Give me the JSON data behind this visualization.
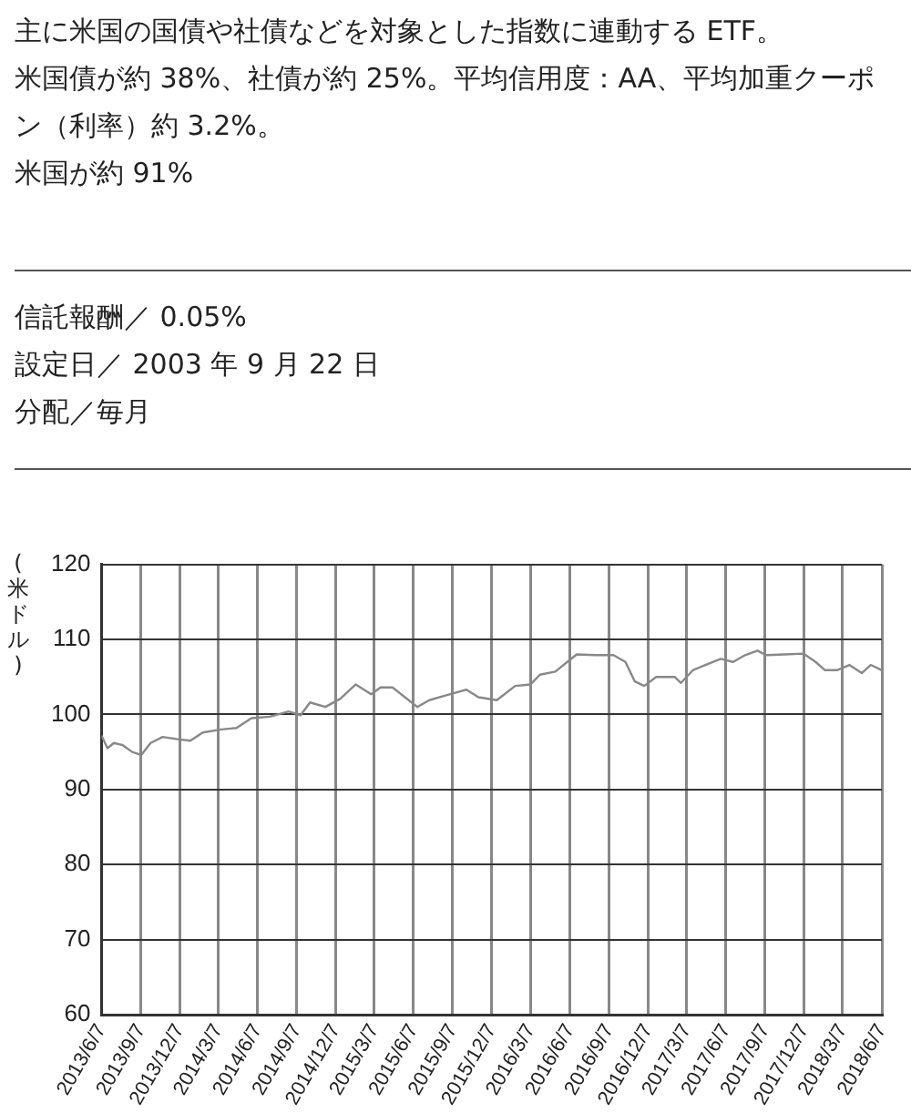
{
  "chart_data": {
    "type": "line",
    "ylabel": "(米ドル)",
    "annotations": [
      "主に米国の国債や社債などを対象とした指数に連動する ETF。",
      "米国債が約 38%、社債が約 25%。平均信用度：AA、平均加重クーポン（利率）約 3.2%。",
      "米国が約 91%",
      "信託報酬／ 0.05%",
      "設定日／ 2003 年 9 月 22 日",
      "分配／毎月"
    ],
    "x": [
      "2013-06-07",
      "2013-06-21",
      "2013-07-06",
      "2013-07-27",
      "2013-08-18",
      "2013-09-08",
      "2013-09-30",
      "2013-10-28",
      "2013-12-03",
      "2014-01-01",
      "2014-01-30",
      "2014-03-14",
      "2014-04-19",
      "2014-05-24",
      "2014-07-06",
      "2014-08-19",
      "2014-09-16",
      "2014-10-08",
      "2014-11-13",
      "2014-12-18",
      "2015-01-23",
      "2015-02-28",
      "2015-03-22",
      "2015-04-19",
      "2015-05-18",
      "2015-06-16",
      "2015-07-14",
      "2015-08-19",
      "2015-10-09",
      "2015-11-06",
      "2015-12-19",
      "2016-01-31",
      "2016-03-07",
      "2016-03-29",
      "2016-05-04",
      "2016-06-01",
      "2016-06-23",
      "2016-08-05",
      "2016-09-17",
      "2016-10-15",
      "2016-11-06",
      "2016-11-28",
      "2016-12-26",
      "2017-02-07",
      "2017-02-22",
      "2017-03-22",
      "2017-04-20",
      "2017-05-26",
      "2017-06-24",
      "2017-07-22",
      "2017-08-20",
      "2017-09-10",
      "2017-10-23",
      "2017-12-06",
      "2018-01-03",
      "2018-01-25",
      "2018-02-22",
      "2018-03-23",
      "2018-04-21",
      "2018-05-12",
      "2018-06-07"
    ],
    "series": [
      {
        "color": "#888888",
        "values": [
          97.2,
          95.5,
          96.2,
          95.9,
          95.0,
          94.6,
          96.2,
          97.0,
          96.7,
          96.5,
          97.6,
          98.0,
          98.2,
          99.5,
          99.7,
          100.4,
          99.9,
          101.6,
          101.0,
          102.1,
          104.0,
          102.7,
          103.6,
          103.6,
          102.3,
          101.0,
          101.9,
          102.5,
          103.3,
          102.3,
          101.9,
          103.8,
          104.0,
          105.3,
          105.7,
          107.0,
          108.0,
          107.9,
          107.9,
          107.0,
          104.4,
          103.8,
          105.0,
          105.0,
          104.2,
          105.9,
          106.6,
          107.4,
          107.0,
          107.9,
          108.5,
          107.9,
          108.0,
          108.1,
          107.0,
          105.9,
          105.9,
          106.6,
          105.5,
          106.6,
          105.9
        ]
      }
    ],
    "xlim": [
      "2013-06-07",
      "2018-06-07"
    ],
    "xticks": [
      {
        "value": "2013-06-07",
        "label": "2013/6/7"
      },
      {
        "value": "2013-09-07",
        "label": "2013/9/7"
      },
      {
        "value": "2013-12-07",
        "label": "2013/12/7"
      },
      {
        "value": "2014-03-07",
        "label": "2014/3/7"
      },
      {
        "value": "2014-06-07",
        "label": "2014/6/7"
      },
      {
        "value": "2014-09-07",
        "label": "2014/9/7"
      },
      {
        "value": "2014-12-07",
        "label": "2014/12/7"
      },
      {
        "value": "2015-03-07",
        "label": "2015/3/7"
      },
      {
        "value": "2015-06-07",
        "label": "2015/6/7"
      },
      {
        "value": "2015-09-07",
        "label": "2015/9/7"
      },
      {
        "value": "2015-12-07",
        "label": "2015/12/7"
      },
      {
        "value": "2016-03-07",
        "label": "2016/3/7"
      },
      {
        "value": "2016-06-07",
        "label": "2016/6/7"
      },
      {
        "value": "2016-09-07",
        "label": "2016/9/7"
      },
      {
        "value": "2016-12-07",
        "label": "2016/12/7"
      },
      {
        "value": "2017-03-07",
        "label": "2017/3/7"
      },
      {
        "value": "2017-06-07",
        "label": "2017/6/7"
      },
      {
        "value": "2017-09-07",
        "label": "2017/9/7"
      },
      {
        "value": "2017-12-07",
        "label": "2017/12/7"
      },
      {
        "value": "2018-03-07",
        "label": "2018/3/7"
      },
      {
        "value": "2018-06-07",
        "label": "2018/6/7"
      }
    ],
    "ylim": [
      60,
      120
    ],
    "yticks": [
      60,
      70,
      80,
      90,
      100,
      110,
      120
    ],
    "grid": true,
    "legend": false,
    "marker": "none",
    "line_style": "solid"
  }
}
